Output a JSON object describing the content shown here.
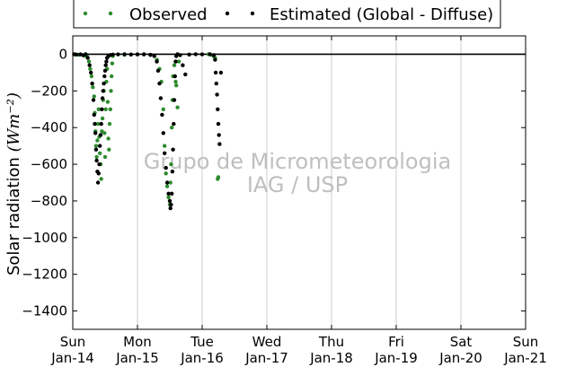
{
  "chart_data": {
    "type": "scatter",
    "title": "",
    "xlabel": "",
    "ylabel": "Solar radiation",
    "ylabel_unit": "(Wm⁻²)",
    "ylim": [
      -1500,
      100
    ],
    "xlim": [
      0,
      7
    ],
    "x_unit": "days since start of axis",
    "yticks": [
      0,
      -200,
      -400,
      -600,
      -800,
      -1000,
      -1200,
      -1400
    ],
    "xtick_labels": [
      {
        "day": "Sun",
        "date": "Jan-14"
      },
      {
        "day": "Mon",
        "date": "Jan-15"
      },
      {
        "day": "Tue",
        "date": "Jan-16"
      },
      {
        "day": "Wed",
        "date": "Jan-17"
      },
      {
        "day": "Thu",
        "date": "Jan-18"
      },
      {
        "day": "Fri",
        "date": "Jan-19"
      },
      {
        "day": "Sat",
        "date": "Jan-20"
      },
      {
        "day": "Sun",
        "date": "Jan-21"
      }
    ],
    "grid": "vertical",
    "zero_line": true,
    "legend": {
      "placement": "top-center-outside"
    },
    "series": [
      {
        "name": "Observed",
        "color": "#2e8b2e",
        "marker": "dot",
        "points": [
          [
            0.04,
            -2
          ],
          [
            0.1,
            -3
          ],
          [
            0.18,
            -8
          ],
          [
            0.22,
            -10
          ],
          [
            0.25,
            -40
          ],
          [
            0.27,
            -80
          ],
          [
            0.29,
            -120
          ],
          [
            0.31,
            -180
          ],
          [
            0.33,
            -230
          ],
          [
            0.34,
            -320
          ],
          [
            0.35,
            -420
          ],
          [
            0.36,
            -500
          ],
          [
            0.37,
            -560
          ],
          [
            0.38,
            -470
          ],
          [
            0.39,
            -380
          ],
          [
            0.4,
            -300
          ],
          [
            0.41,
            -450
          ],
          [
            0.42,
            -540
          ],
          [
            0.43,
            -600
          ],
          [
            0.44,
            -680
          ],
          [
            0.45,
            -420
          ],
          [
            0.46,
            -350
          ],
          [
            0.47,
            -250
          ],
          [
            0.48,
            -200
          ],
          [
            0.49,
            -430
          ],
          [
            0.5,
            -560
          ],
          [
            0.51,
            -300
          ],
          [
            0.52,
            -150
          ],
          [
            0.53,
            -80
          ],
          [
            0.54,
            -260
          ],
          [
            0.55,
            -460
          ],
          [
            0.56,
            -520
          ],
          [
            0.57,
            -380
          ],
          [
            0.58,
            -300
          ],
          [
            0.59,
            -200
          ],
          [
            0.6,
            -120
          ],
          [
            0.61,
            -50
          ],
          [
            0.62,
            -10
          ],
          [
            0.8,
            -3
          ],
          [
            0.9,
            -2
          ],
          [
            1.0,
            -1
          ],
          [
            1.1,
            -2
          ],
          [
            1.2,
            -4
          ],
          [
            1.3,
            -30
          ],
          [
            1.34,
            -80
          ],
          [
            1.37,
            -150
          ],
          [
            1.4,
            -300
          ],
          [
            1.42,
            -500
          ],
          [
            1.44,
            -650
          ],
          [
            1.46,
            -720
          ],
          [
            1.48,
            -780
          ],
          [
            1.5,
            -820
          ],
          [
            1.51,
            -700
          ],
          [
            1.52,
            -600
          ],
          [
            1.53,
            -400
          ],
          [
            1.54,
            -250
          ],
          [
            1.55,
            -120
          ],
          [
            1.57,
            -60
          ],
          [
            1.59,
            -150
          ],
          [
            1.6,
            -170
          ],
          [
            1.62,
            -290
          ],
          [
            1.64,
            -40
          ],
          [
            2.1,
            0
          ],
          [
            2.14,
            -3
          ],
          [
            2.18,
            -12
          ],
          [
            2.2,
            -20
          ],
          [
            2.24,
            -680
          ],
          [
            2.25,
            -670
          ]
        ]
      },
      {
        "name": "Estimated (Global - Diffuse)",
        "color": "#000000",
        "marker": "dot",
        "points": [
          [
            0.02,
            0
          ],
          [
            0.06,
            -2
          ],
          [
            0.12,
            -1
          ],
          [
            0.16,
            -5
          ],
          [
            0.2,
            0
          ],
          [
            0.23,
            -20
          ],
          [
            0.26,
            -60
          ],
          [
            0.28,
            -100
          ],
          [
            0.3,
            -160
          ],
          [
            0.32,
            -250
          ],
          [
            0.33,
            -330
          ],
          [
            0.34,
            -380
          ],
          [
            0.35,
            -430
          ],
          [
            0.36,
            -520
          ],
          [
            0.37,
            -580
          ],
          [
            0.38,
            -640
          ],
          [
            0.39,
            -700
          ],
          [
            0.4,
            -650
          ],
          [
            0.41,
            -600
          ],
          [
            0.42,
            -500
          ],
          [
            0.43,
            -440
          ],
          [
            0.44,
            -380
          ],
          [
            0.45,
            -300
          ],
          [
            0.46,
            -240
          ],
          [
            0.47,
            -200
          ],
          [
            0.48,
            -160
          ],
          [
            0.49,
            -120
          ],
          [
            0.5,
            -90
          ],
          [
            0.51,
            -60
          ],
          [
            0.52,
            -40
          ],
          [
            0.53,
            -20
          ],
          [
            0.55,
            -10
          ],
          [
            0.58,
            -4
          ],
          [
            0.62,
            -2
          ],
          [
            0.7,
            -1
          ],
          [
            0.8,
            0
          ],
          [
            0.9,
            -2
          ],
          [
            1.0,
            -1
          ],
          [
            1.1,
            0
          ],
          [
            1.2,
            -3
          ],
          [
            1.26,
            -10
          ],
          [
            1.3,
            -40
          ],
          [
            1.32,
            -90
          ],
          [
            1.34,
            -160
          ],
          [
            1.36,
            -240
          ],
          [
            1.38,
            -330
          ],
          [
            1.4,
            -430
          ],
          [
            1.42,
            -540
          ],
          [
            1.44,
            -620
          ],
          [
            1.46,
            -700
          ],
          [
            1.48,
            -760
          ],
          [
            1.5,
            -800
          ],
          [
            1.51,
            -840
          ],
          [
            1.52,
            -820
          ],
          [
            1.53,
            -760
          ],
          [
            1.54,
            -640
          ],
          [
            1.55,
            -520
          ],
          [
            1.56,
            -380
          ],
          [
            1.57,
            -250
          ],
          [
            1.58,
            -120
          ],
          [
            1.59,
            -40
          ],
          [
            1.6,
            -10
          ],
          [
            1.62,
            0
          ],
          [
            1.66,
            -5
          ],
          [
            1.7,
            -60
          ],
          [
            1.74,
            -110
          ],
          [
            1.8,
            -2
          ],
          [
            1.9,
            0
          ],
          [
            2.0,
            -1
          ],
          [
            2.12,
            0
          ],
          [
            2.18,
            -5
          ],
          [
            2.2,
            -30
          ],
          [
            2.21,
            -100
          ],
          [
            2.22,
            -160
          ],
          [
            2.23,
            -220
          ],
          [
            2.24,
            -300
          ],
          [
            2.25,
            -380
          ],
          [
            2.26,
            -440
          ],
          [
            2.27,
            -490
          ],
          [
            2.29,
            -100
          ]
        ]
      }
    ],
    "watermark": [
      "Grupo de Micrometeorologia",
      "IAG / USP"
    ]
  }
}
